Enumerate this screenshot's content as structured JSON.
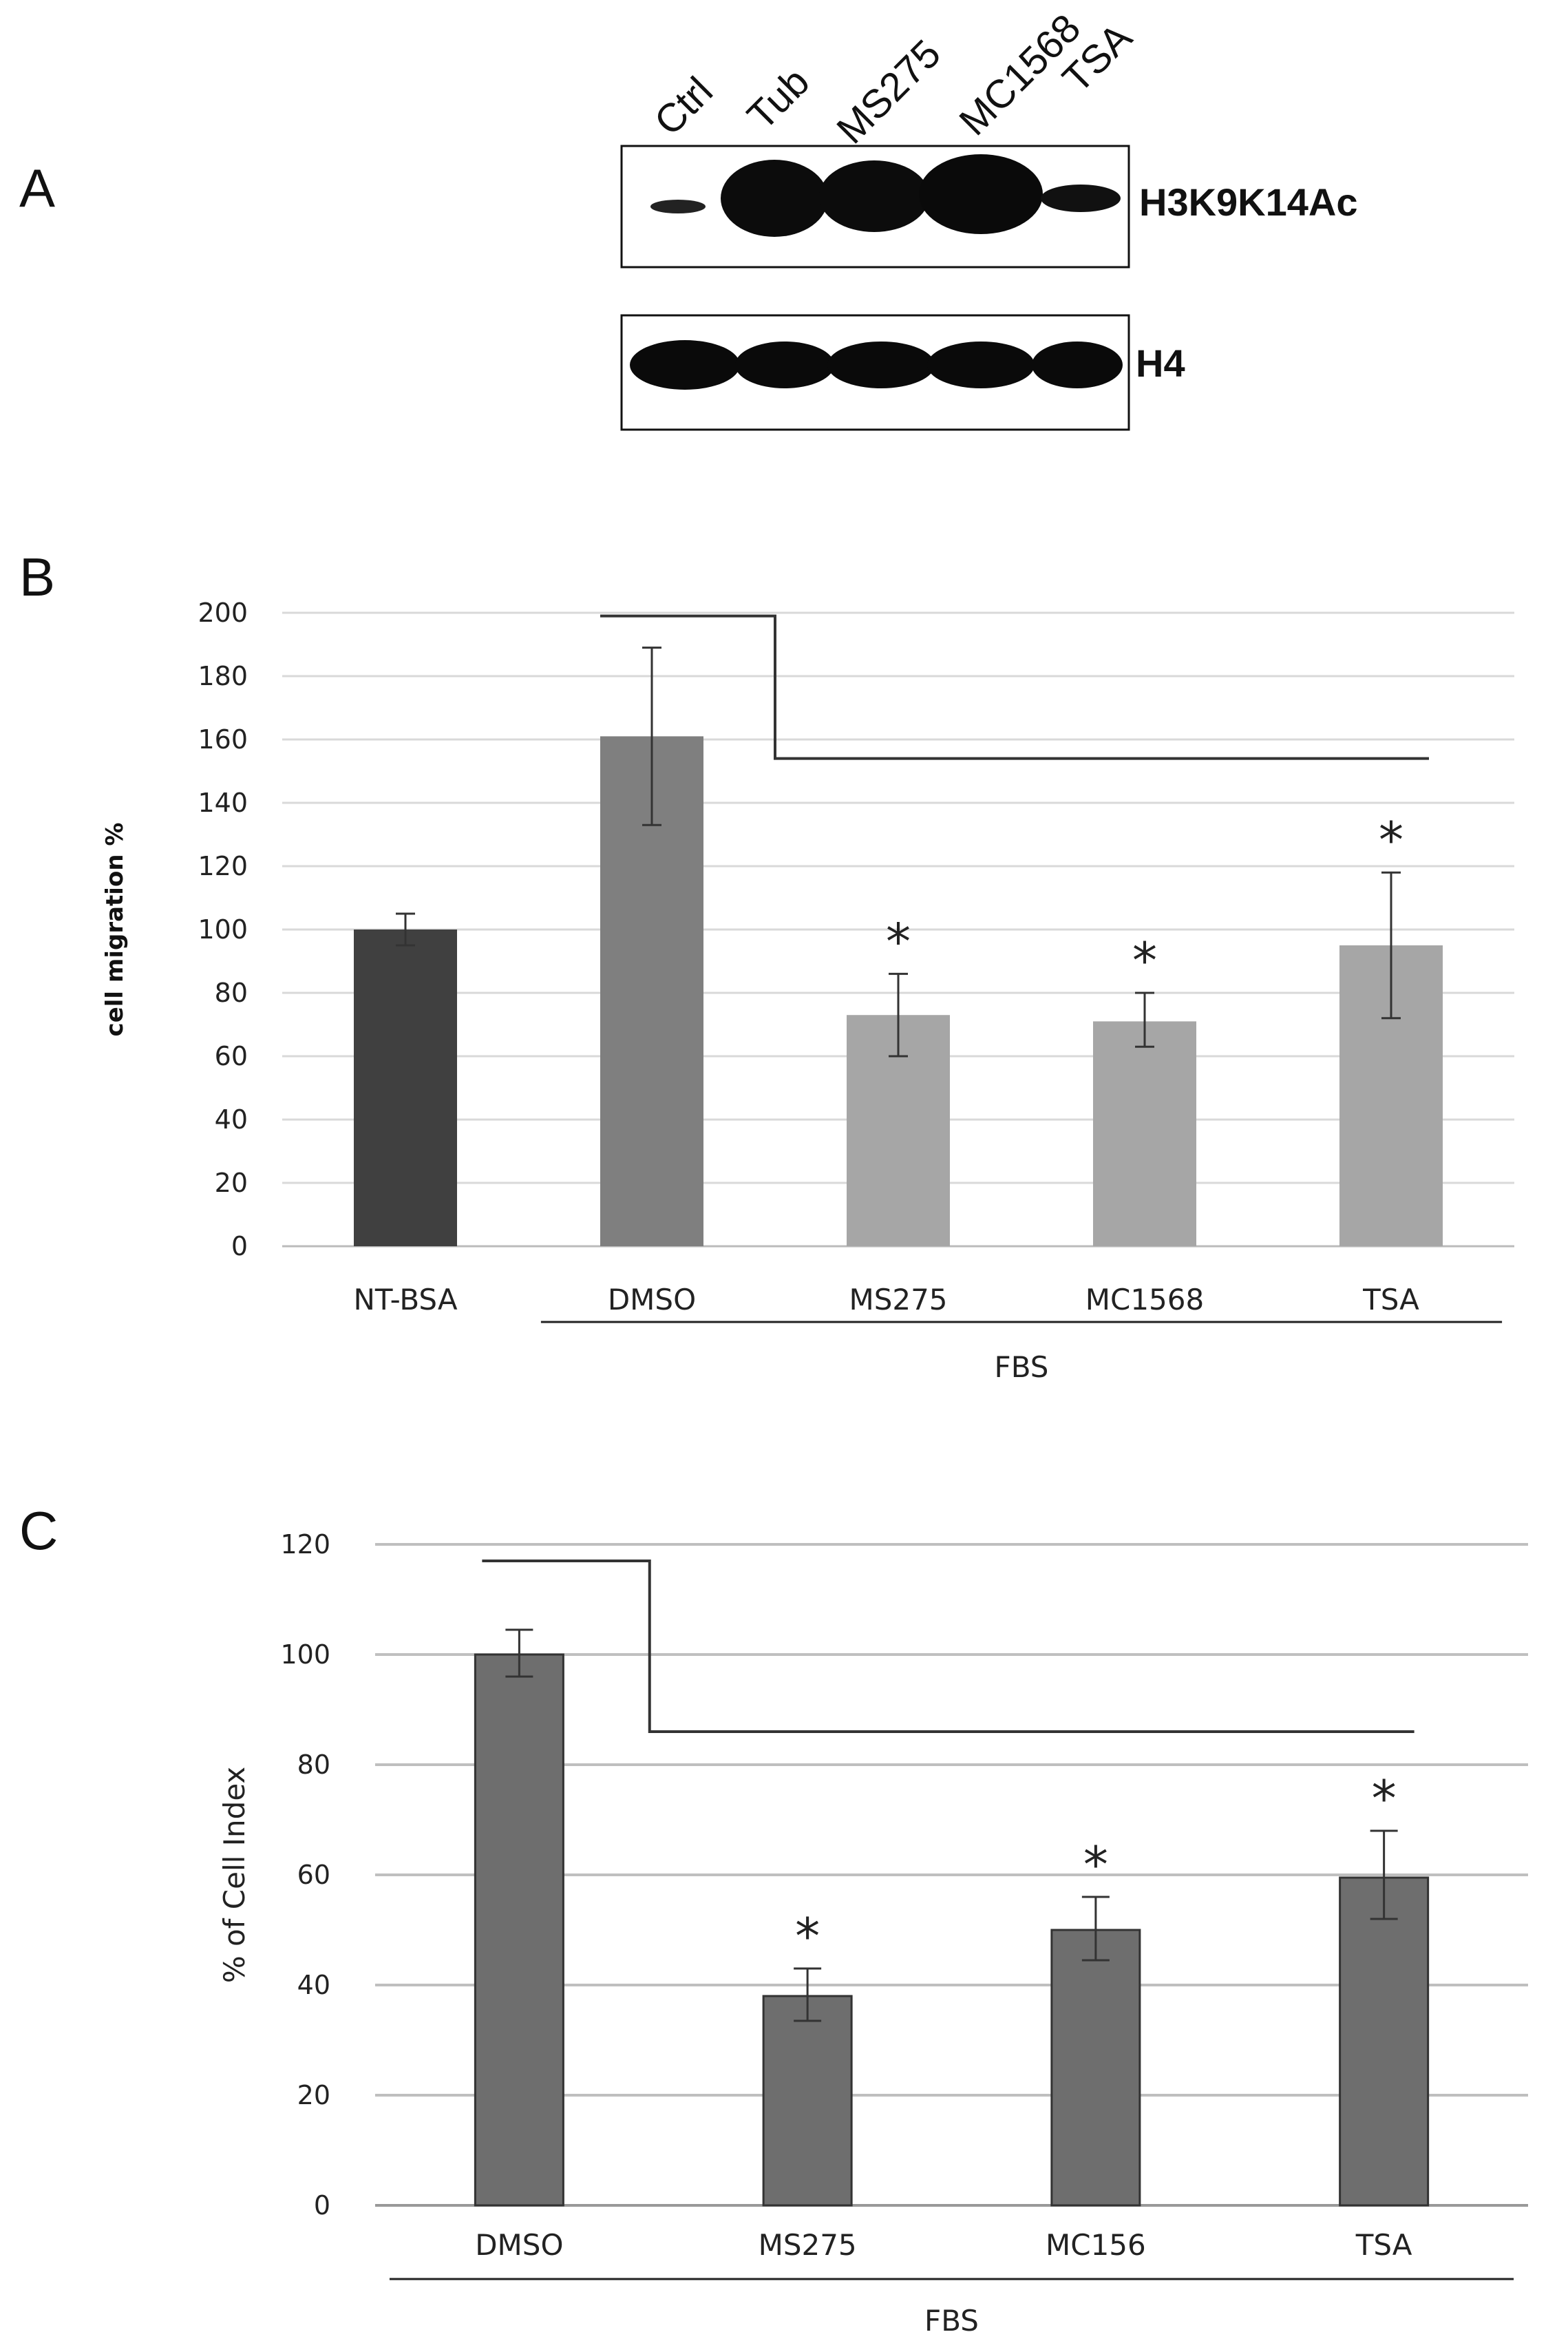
{
  "panels": {
    "a": "A",
    "b": "B",
    "c": "C"
  },
  "blot": {
    "lanes": [
      "Ctrl",
      "Tub",
      "MS275",
      "MC1568",
      "TSA"
    ],
    "top_label": "H3K9K14Ac",
    "bottom_label": "H4"
  },
  "colors": {
    "bar_ntbsa": "#404040",
    "bar_dmso": "#7f7f7f",
    "bar_treat": "#a6a6a6",
    "bar_c": "#6e6e6e",
    "grid_b": "#d9d9d9",
    "grid_c": "#bfbfbf"
  },
  "chart_data": [
    {
      "type": "bar",
      "title": "",
      "ylabel": "cell migration %",
      "group_label": "FBS",
      "categories": [
        "NT-BSA",
        "DMSO",
        "MS275",
        "MC1568",
        "TSA"
      ],
      "values": [
        100,
        161,
        73,
        71,
        95
      ],
      "error_low": [
        95,
        133,
        60,
        63,
        72
      ],
      "error_high": [
        105,
        189,
        86,
        80,
        118
      ],
      "significance": [
        "",
        "",
        "*",
        "*",
        "*"
      ],
      "ylim": [
        0,
        200
      ],
      "yticks": [
        0,
        20,
        40,
        60,
        80,
        100,
        120,
        140,
        160,
        180,
        200
      ],
      "grid": true,
      "bracket": {
        "from": "DMSO",
        "to": "TSA",
        "top": 199,
        "bottom": 154
      }
    },
    {
      "type": "bar",
      "title": "",
      "ylabel": "% of Cell Index",
      "group_label": "FBS",
      "categories": [
        "DMSO",
        "MS275",
        "MC156",
        "TSA"
      ],
      "values": [
        100,
        38,
        50,
        59.5
      ],
      "error_low": [
        96,
        33.5,
        44.5,
        52
      ],
      "error_high": [
        104.5,
        43,
        56,
        68
      ],
      "significance": [
        "",
        "*",
        "*",
        "*"
      ],
      "ylim": [
        0,
        120
      ],
      "yticks": [
        0,
        20,
        40,
        60,
        80,
        100,
        120
      ],
      "grid": true,
      "bracket": {
        "from": "DMSO",
        "to": "TSA",
        "top": 117,
        "bottom": 86
      }
    }
  ]
}
